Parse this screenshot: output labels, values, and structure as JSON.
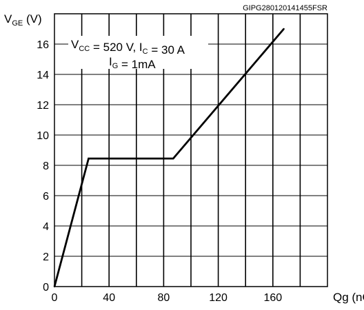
{
  "chart_data": {
    "type": "line",
    "reference_code": "GIPG280120141455FSR",
    "ylabel": {
      "main": "V",
      "sub": "GE",
      "unit": " (V)"
    },
    "xlabel": "Qg (nC)",
    "xlim": [
      0,
      200
    ],
    "ylim": [
      0,
      18
    ],
    "x_ticks": [
      0,
      40,
      80,
      120,
      160
    ],
    "y_ticks": [
      0,
      2,
      4,
      6,
      8,
      10,
      12,
      14,
      16
    ],
    "grid": {
      "vertical": true,
      "horizontal": "at y ticks"
    },
    "conditions": {
      "line1": [
        {
          "t": "V"
        },
        {
          "t": "CC",
          "sub": true
        },
        {
          "t": " = 520 V, I"
        },
        {
          "t": "C",
          "sub": true
        },
        {
          "t": " = 30 A"
        }
      ],
      "line2": [
        {
          "t": "I"
        },
        {
          "t": "G",
          "sub": true
        },
        {
          "t": " = 1mA"
        }
      ]
    },
    "series": [
      {
        "color": "#000000",
        "points": [
          [
            0,
            0
          ],
          [
            25,
            8.45
          ],
          [
            87,
            8.45
          ],
          [
            168,
            17
          ]
        ]
      }
    ]
  }
}
